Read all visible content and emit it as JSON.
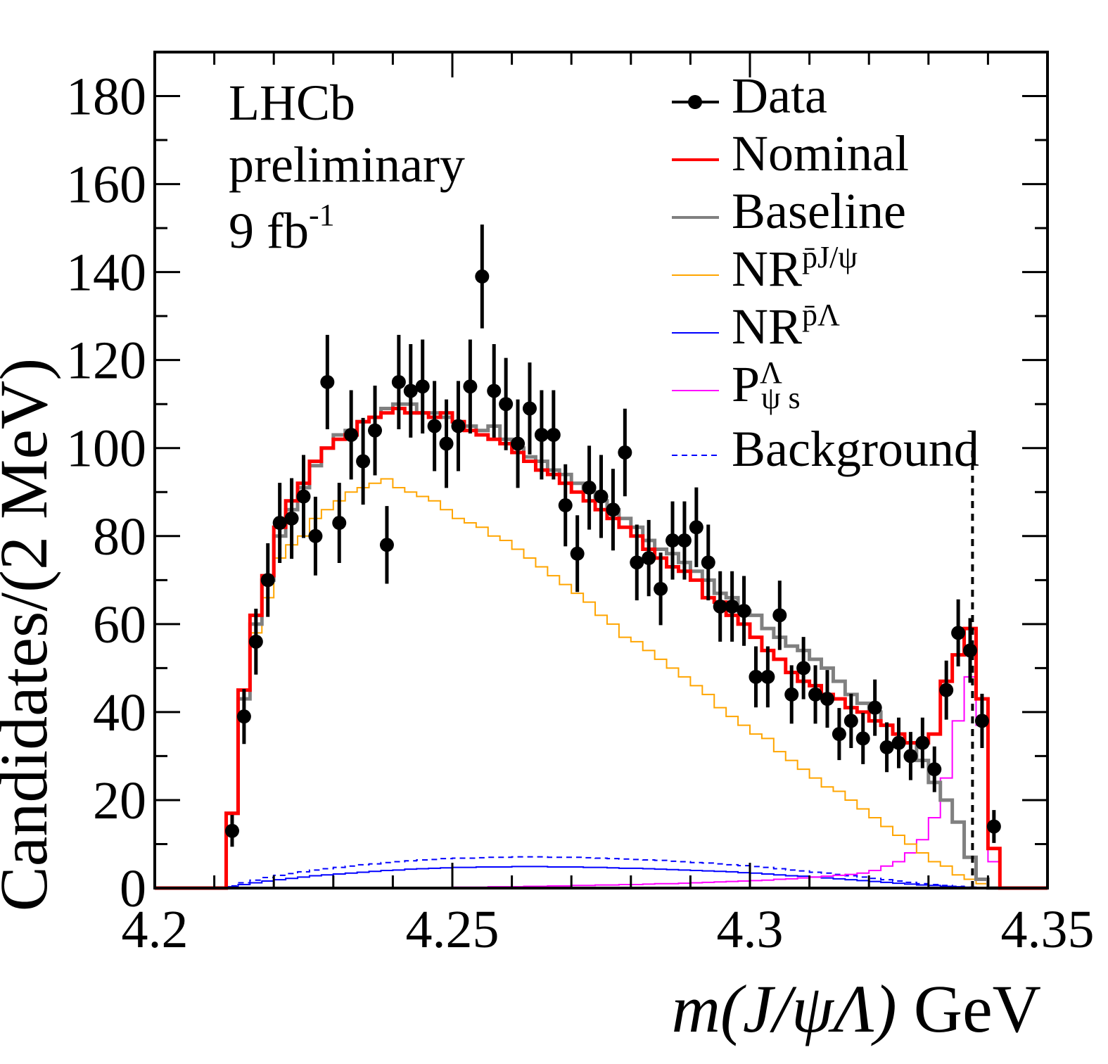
{
  "chart_data": {
    "type": "histogram",
    "title": "",
    "xlabel_parts": {
      "m": "m",
      "open": "(",
      "jpsi": "J/ψ",
      "lambda": "Λ",
      "close": ")",
      "unit": " GeV"
    },
    "ylabel": "Candidates/(2 MeV)",
    "xlim": [
      4.2,
      4.35
    ],
    "ylim": [
      0,
      190
    ],
    "x_ticks": [
      "4.2",
      "4.25",
      "4.3",
      "4.35"
    ],
    "y_ticks": [
      "0",
      "20",
      "40",
      "60",
      "80",
      "100",
      "120",
      "140",
      "160",
      "180"
    ],
    "bin_width": 0.002,
    "first_bin_low_edge": 4.212,
    "annotations": {
      "experiment": "LHCb",
      "status": "preliminary",
      "lumi": "9 fb",
      "lumi_exp": "-1"
    },
    "threshold_line_x": 4.3374,
    "legend": {
      "placement": "top-right",
      "data": "Data",
      "nominal": "Nominal",
      "baseline": "Baseline",
      "nr_pjpsi": {
        "main": "NR",
        "sub": "p̄J/ψ"
      },
      "nr_plambda": {
        "main": "NR",
        "sub": "p̄Λ"
      },
      "pc": {
        "main": "P",
        "sup": "Λ",
        "sub": "ψ s"
      },
      "background": "Background"
    },
    "colors": {
      "data": "#000000",
      "nominal": "#ff0000",
      "baseline": "#808080",
      "nr_pjpsi": "#ffa500",
      "nr_plambda": "#0000ff",
      "pc": "#ff00ff",
      "background": "#0000ff"
    },
    "data_points": {
      "x": [
        4.213,
        4.215,
        4.217,
        4.219,
        4.221,
        4.223,
        4.225,
        4.227,
        4.229,
        4.231,
        4.233,
        4.235,
        4.237,
        4.239,
        4.241,
        4.243,
        4.245,
        4.247,
        4.249,
        4.251,
        4.253,
        4.255,
        4.257,
        4.259,
        4.261,
        4.263,
        4.265,
        4.267,
        4.269,
        4.271,
        4.273,
        4.275,
        4.277,
        4.279,
        4.281,
        4.283,
        4.285,
        4.287,
        4.289,
        4.291,
        4.293,
        4.295,
        4.297,
        4.299,
        4.301,
        4.303,
        4.305,
        4.307,
        4.309,
        4.311,
        4.313,
        4.315,
        4.317,
        4.319,
        4.321,
        4.323,
        4.325,
        4.327,
        4.329,
        4.331,
        4.333,
        4.335,
        4.337,
        4.339,
        4.341
      ],
      "y": [
        13,
        39,
        56,
        70,
        83,
        84,
        89,
        80,
        115,
        83,
        103,
        97,
        104,
        78,
        115,
        113,
        114,
        105,
        101,
        105,
        114,
        139,
        113,
        110,
        101,
        109,
        103,
        103,
        87,
        76,
        91,
        89,
        86,
        99,
        74,
        75,
        68,
        79,
        79,
        82,
        74,
        64,
        64,
        63,
        48,
        48,
        62,
        44,
        50,
        44,
        43,
        35,
        38,
        34,
        41,
        32,
        33,
        30,
        33,
        27,
        45,
        58,
        54,
        38,
        14
      ]
    },
    "series": [
      {
        "name": "Nominal",
        "values": [
          17,
          45,
          62,
          71,
          82,
          88,
          92,
          97,
          100,
          102,
          103,
          106,
          107,
          108,
          109,
          108,
          108,
          107,
          108,
          106,
          104,
          103,
          102,
          101,
          99,
          97,
          95,
          94,
          92,
          90,
          88,
          86,
          84,
          82,
          80,
          77,
          75,
          73,
          72,
          70,
          66,
          65,
          62,
          60,
          57,
          54,
          52,
          49,
          47,
          46,
          44,
          43,
          41,
          40,
          38,
          37,
          35,
          33,
          33,
          35,
          47,
          53,
          59,
          43,
          9
        ]
      },
      {
        "name": "Baseline",
        "values": [
          17,
          43,
          60,
          70,
          80,
          86,
          91,
          96,
          100,
          103,
          104,
          106,
          107,
          109,
          110,
          110,
          108,
          108,
          107,
          106,
          105,
          104,
          105,
          102,
          100,
          98,
          97,
          95,
          94,
          92,
          90,
          88,
          86,
          84,
          82,
          79,
          77,
          76,
          74,
          72,
          70,
          67,
          66,
          63,
          62,
          59,
          57,
          55,
          54,
          52,
          50,
          47,
          44,
          42,
          40,
          37,
          35,
          33,
          29,
          24,
          20,
          15,
          7,
          2,
          0
        ]
      },
      {
        "name": "NR_pJpsi",
        "values": [
          17,
          43,
          58,
          66,
          75,
          78,
          80,
          84,
          86,
          88,
          90,
          91,
          92,
          93,
          91,
          90,
          89,
          88,
          86,
          84,
          83,
          82,
          80,
          79,
          77,
          75,
          73,
          71,
          69,
          67,
          65,
          62,
          60,
          57,
          56,
          54,
          52,
          50,
          48,
          46,
          44,
          41,
          39,
          37,
          35,
          34,
          31,
          29,
          27,
          25,
          23,
          22,
          20,
          18,
          16,
          14,
          12,
          10,
          8,
          6,
          5,
          3,
          2,
          1,
          0
        ]
      },
      {
        "name": "NR_pLambda",
        "values": [
          0.3,
          0.8,
          1.2,
          1.6,
          1.9,
          2.2,
          2.5,
          2.8,
          3.0,
          3.2,
          3.4,
          3.6,
          3.8,
          4.0,
          4.1,
          4.3,
          4.4,
          4.5,
          4.6,
          4.7,
          4.7,
          4.8,
          4.8,
          4.8,
          4.9,
          4.9,
          4.9,
          4.8,
          4.8,
          4.8,
          4.7,
          4.7,
          4.6,
          4.5,
          4.5,
          4.4,
          4.3,
          4.2,
          4.1,
          4.0,
          3.9,
          3.8,
          3.7,
          3.5,
          3.4,
          3.2,
          3.0,
          2.8,
          2.7,
          2.5,
          2.3,
          2.1,
          1.9,
          1.7,
          1.5,
          1.3,
          1.1,
          0.9,
          0.7,
          0.6,
          0.4,
          0.3,
          0.2,
          0.1,
          0.0
        ]
      },
      {
        "name": "Pc",
        "values": [
          0,
          0,
          0,
          0,
          0,
          0,
          0,
          0,
          0,
          0,
          0,
          0,
          0,
          0,
          0,
          0,
          0.1,
          0.1,
          0.1,
          0.2,
          0.2,
          0.2,
          0.3,
          0.3,
          0.3,
          0.4,
          0.4,
          0.5,
          0.5,
          0.6,
          0.6,
          0.7,
          0.7,
          0.8,
          0.8,
          0.9,
          1.0,
          1.0,
          1.1,
          1.2,
          1.3,
          1.4,
          1.5,
          1.6,
          1.7,
          1.8,
          2.0,
          2.1,
          2.3,
          2.5,
          2.7,
          2.9,
          3.1,
          3.4,
          4,
          5,
          6,
          8,
          11,
          16,
          25,
          38,
          48,
          37,
          6
        ]
      },
      {
        "name": "Background",
        "values": [
          0.5,
          1.2,
          1.8,
          2.4,
          2.9,
          3.3,
          3.7,
          4.1,
          4.4,
          4.7,
          5.0,
          5.3,
          5.5,
          5.8,
          6.0,
          6.2,
          6.4,
          6.5,
          6.7,
          6.8,
          6.8,
          6.9,
          7.0,
          7.0,
          7.1,
          7.1,
          7.1,
          7.0,
          7.0,
          7.0,
          6.9,
          6.8,
          6.7,
          6.6,
          6.5,
          6.4,
          6.3,
          6.1,
          6.0,
          5.8,
          5.7,
          5.5,
          5.3,
          5.1,
          4.9,
          4.7,
          4.4,
          4.1,
          3.9,
          3.6,
          3.4,
          3.1,
          2.8,
          2.5,
          2.2,
          1.9,
          1.6,
          1.3,
          1.0,
          0.8,
          0.6,
          0.4,
          0.2,
          0.1,
          0.0
        ]
      }
    ]
  }
}
